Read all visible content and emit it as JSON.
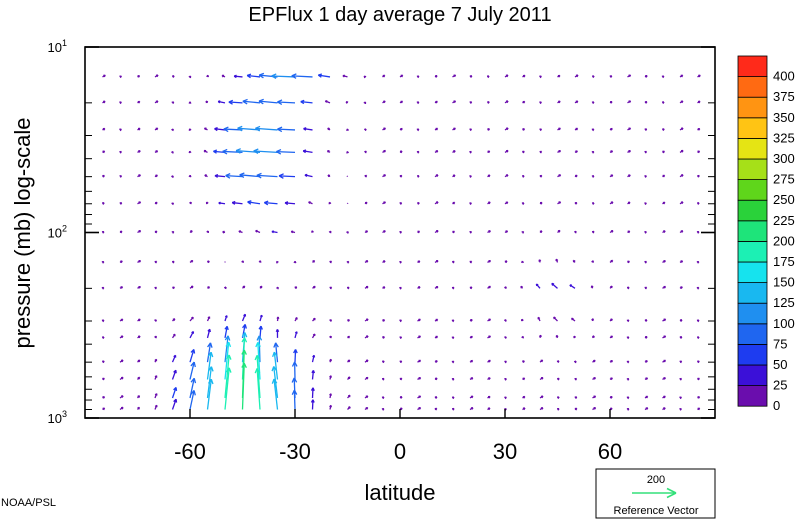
{
  "chart_data": {
    "type": "vector-field",
    "title": "EPFlux  1 day average  7 July      2011",
    "xlabel": "latitude",
    "ylabel": "pressure (mb)  log-scale",
    "x_ticks": [
      {
        "value": -60,
        "label": "-60"
      },
      {
        "value": -30,
        "label": "-30"
      },
      {
        "value": 0,
        "label": "0"
      },
      {
        "value": 30,
        "label": "30"
      },
      {
        "value": 60,
        "label": "60"
      }
    ],
    "y_scale": "log",
    "y_reversed": true,
    "ylim": [
      1000,
      10
    ],
    "y_ticks": [
      {
        "value": 10,
        "base": "10",
        "exp": "1"
      },
      {
        "value": 100,
        "base": "10",
        "exp": "2"
      },
      {
        "value": 1000,
        "base": "10",
        "exp": "3"
      }
    ],
    "colorbar": {
      "levels": [
        "0",
        "25",
        "50",
        "75",
        "100",
        "125",
        "150",
        "175",
        "200",
        "225",
        "250",
        "275",
        "300",
        "325",
        "350",
        "375",
        "400"
      ],
      "colors": [
        "#6a0dad",
        "#3b10d8",
        "#1e3cf0",
        "#1f66f0",
        "#1f8ff0",
        "#19b8f0",
        "#16e3ee",
        "#1cf0b4",
        "#1ee47a",
        "#2ad23a",
        "#5fd61b",
        "#a6e018",
        "#e5e414",
        "#ffc414",
        "#ff9412",
        "#ff6a12",
        "#ff2a1a"
      ]
    },
    "reference_vector": {
      "value": "200",
      "label": "Reference Vector"
    },
    "grid": false,
    "credit": "NOAA/PSL"
  }
}
